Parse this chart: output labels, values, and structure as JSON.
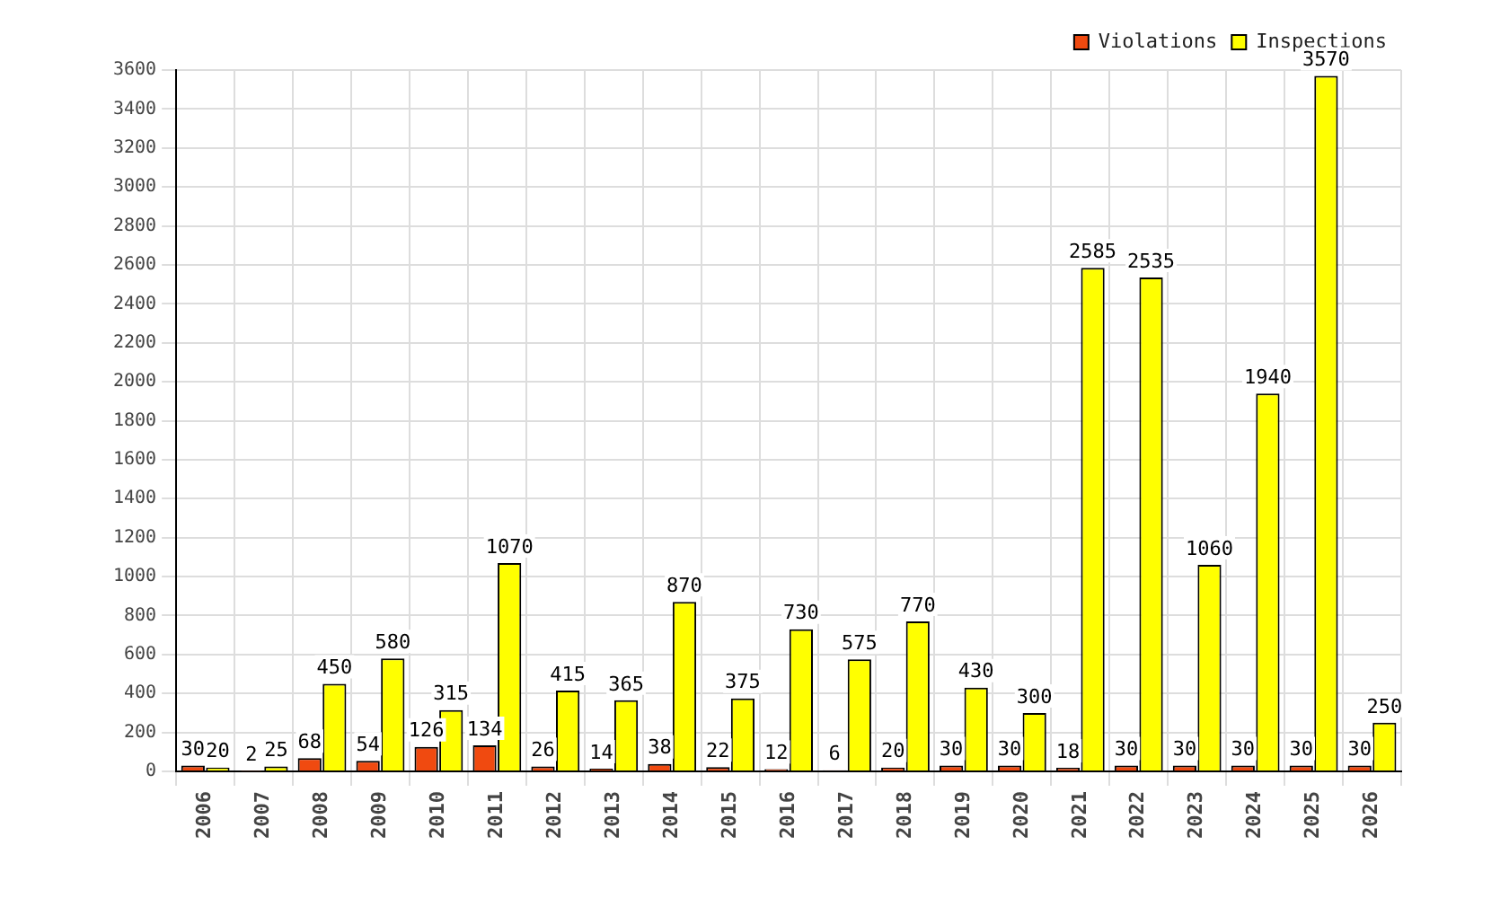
{
  "chart_data": {
    "type": "bar",
    "categories": [
      "2006",
      "2007",
      "2008",
      "2009",
      "2010",
      "2011",
      "2012",
      "2013",
      "2014",
      "2015",
      "2016",
      "2017",
      "2018",
      "2019",
      "2020",
      "2021",
      "2022",
      "2023",
      "2024",
      "2025",
      "2026"
    ],
    "series": [
      {
        "name": "Violations",
        "color": "#f04a10",
        "values": [
          30,
          2,
          68,
          54,
          126,
          134,
          26,
          14,
          38,
          22,
          12,
          6,
          20,
          30,
          30,
          18,
          30,
          30,
          30,
          30,
          30
        ]
      },
      {
        "name": "Inspections",
        "color": "#ffff00",
        "values": [
          20,
          25,
          450,
          580,
          315,
          1070,
          415,
          365,
          870,
          375,
          730,
          575,
          770,
          430,
          300,
          2585,
          2535,
          1060,
          1940,
          3570,
          250
        ]
      }
    ],
    "ylim": [
      0,
      3600
    ],
    "yticks": [
      0,
      200,
      400,
      600,
      800,
      1000,
      1200,
      1400,
      1600,
      1800,
      2000,
      2200,
      2400,
      2600,
      2800,
      3000,
      3200,
      3400,
      3600
    ],
    "grid": true,
    "legend": "top right",
    "data_labels": true
  }
}
